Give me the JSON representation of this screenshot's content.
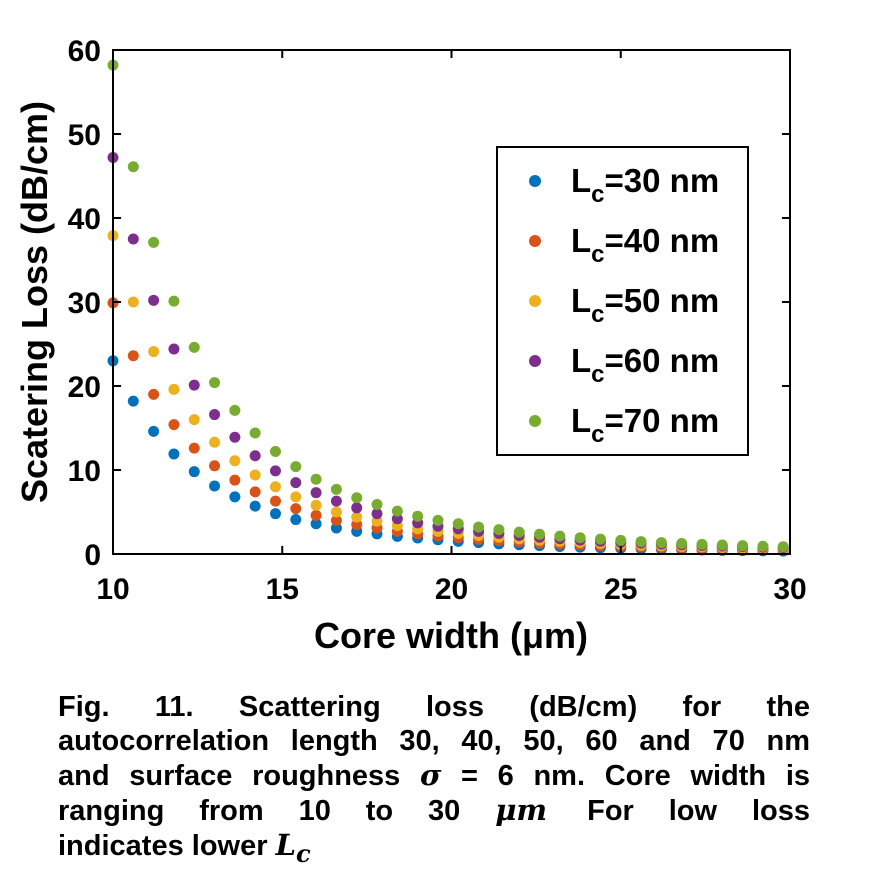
{
  "chart_data": {
    "type": "scatter",
    "xlabel": "Core width (μm)",
    "ylabel": "Scatering Loss (dB/cm)",
    "xlim": [
      10,
      30
    ],
    "ylim": [
      0,
      60
    ],
    "xticks": [
      10,
      15,
      20,
      25,
      30
    ],
    "yticks": [
      0,
      10,
      20,
      30,
      40,
      50,
      60
    ],
    "grid": false,
    "legend_position": "top-right",
    "x": [
      10,
      10.6,
      11.2,
      11.8,
      12.4,
      13.0,
      13.6,
      14.2,
      14.8,
      15.4,
      16.0,
      16.6,
      17.2,
      17.8,
      18.4,
      19.0,
      19.6,
      20.2,
      20.8,
      21.4,
      22.0,
      22.6,
      23.2,
      23.8,
      24.4,
      25.0,
      25.6,
      26.2,
      26.8,
      27.4,
      28.0,
      28.6,
      29.2,
      29.8
    ],
    "series": [
      {
        "legend_main": "L",
        "legend_sub": "c",
        "legend_rest": "=30 nm",
        "color": "#0072BD",
        "values": [
          23.0,
          18.2,
          14.6,
          11.9,
          9.8,
          8.1,
          6.8,
          5.7,
          4.8,
          4.1,
          3.6,
          3.1,
          2.7,
          2.4,
          2.1,
          1.9,
          1.7,
          1.5,
          1.35,
          1.2,
          1.1,
          1.0,
          0.9,
          0.82,
          0.75,
          0.68,
          0.62,
          0.57,
          0.52,
          0.48,
          0.44,
          0.41,
          0.38,
          0.35
        ]
      },
      {
        "legend_main": "L",
        "legend_sub": "c",
        "legend_rest": "=40 nm",
        "color": "#D95319",
        "values": [
          29.9,
          23.6,
          19.0,
          15.4,
          12.6,
          10.5,
          8.8,
          7.4,
          6.3,
          5.4,
          4.6,
          4.0,
          3.5,
          3.1,
          2.7,
          2.4,
          2.15,
          1.95,
          1.75,
          1.58,
          1.43,
          1.3,
          1.18,
          1.08,
          0.99,
          0.91,
          0.84,
          0.77,
          0.71,
          0.66,
          0.61,
          0.57,
          0.53,
          0.49
        ]
      },
      {
        "legend_main": "L",
        "legend_sub": "c",
        "legend_rest": "=50 nm",
        "color": "#EDB120",
        "values": [
          37.9,
          30.0,
          24.1,
          19.6,
          16.0,
          13.3,
          11.1,
          9.4,
          8.0,
          6.8,
          5.8,
          5.0,
          4.4,
          3.9,
          3.4,
          3.0,
          2.7,
          2.45,
          2.2,
          2.0,
          1.8,
          1.64,
          1.5,
          1.37,
          1.25,
          1.15,
          1.05,
          0.97,
          0.9,
          0.83,
          0.77,
          0.72,
          0.67,
          0.62
        ]
      },
      {
        "legend_main": "L",
        "legend_sub": "c",
        "legend_rest": "=60 nm",
        "color": "#7E2F8E",
        "values": [
          47.2,
          37.5,
          30.2,
          24.4,
          20.1,
          16.6,
          13.9,
          11.7,
          9.9,
          8.5,
          7.3,
          6.3,
          5.5,
          4.8,
          4.2,
          3.7,
          3.3,
          3.0,
          2.7,
          2.45,
          2.2,
          2.0,
          1.82,
          1.66,
          1.52,
          1.4,
          1.29,
          1.19,
          1.1,
          1.02,
          0.95,
          0.88,
          0.82,
          0.77
        ]
      },
      {
        "legend_main": "L",
        "legend_sub": "c",
        "legend_rest": "=70 nm",
        "color": "#77AC30",
        "values": [
          58.2,
          46.1,
          37.1,
          30.1,
          24.6,
          20.4,
          17.1,
          14.4,
          12.2,
          10.4,
          8.9,
          7.7,
          6.7,
          5.9,
          5.1,
          4.5,
          4.0,
          3.6,
          3.2,
          2.9,
          2.6,
          2.35,
          2.13,
          1.94,
          1.77,
          1.62,
          1.48,
          1.36,
          1.25,
          1.15,
          1.07,
          0.99,
          0.92,
          0.86
        ]
      }
    ]
  },
  "caption": {
    "line1": "Fig.  11.  Scattering  loss  (dB/cm)  for  the",
    "line2": "autocorrelation length 30, 40, 50, 60 and 70 nm",
    "line3_pre": "and surface roughness ",
    "line3_sigma": "σ",
    "line3_post": " = 6 nm. Core width is",
    "line4_pre": "ranging  from  10  to  30  ",
    "line4_unit": "μm",
    "line4_post": "For  low  loss",
    "line5_pre": "indicates lower ",
    "line5_L": "L",
    "line5_sub": "c"
  }
}
